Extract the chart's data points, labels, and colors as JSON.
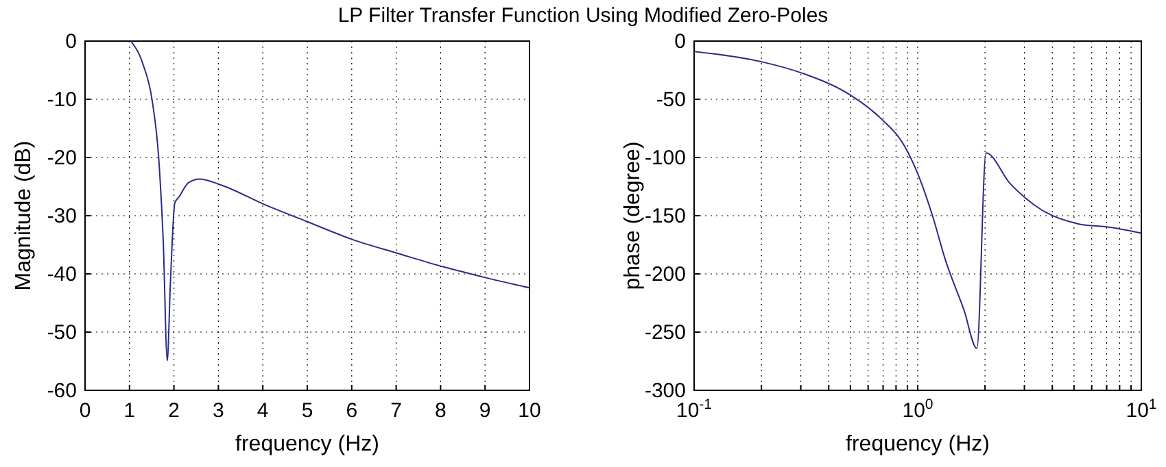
{
  "chart_data": [
    {
      "type": "line",
      "title": "LP Filter Transfer Function Using Modified Zero-Poles",
      "xlabel": "frequency (Hz)",
      "ylabel": "Magnitude (dB)",
      "xlim": [
        0,
        10
      ],
      "ylim": [
        -60,
        0
      ],
      "xticks": [
        0,
        1,
        2,
        3,
        4,
        5,
        6,
        7,
        8,
        9,
        10
      ],
      "yticks": [
        -60,
        -50,
        -40,
        -30,
        -20,
        -10,
        0
      ],
      "grid": true,
      "series": [
        {
          "color": "#2b2b8c",
          "x": [
            1.03,
            1.3,
            1.51,
            1.66,
            1.76,
            1.85,
            1.92,
            2.02,
            2.12,
            2.33,
            2.58,
            3.05,
            4.07,
            4.99,
            6.02,
            7.05,
            8.07,
            8.99,
            10
          ],
          "values": [
            0,
            -3.9,
            -10.2,
            -20.4,
            -34.5,
            -54.9,
            -41.6,
            -27.8,
            -26.7,
            -24.3,
            -23.7,
            -24.7,
            -28.2,
            -31,
            -34.1,
            -36.5,
            -38.8,
            -40.6,
            -42.4
          ]
        }
      ]
    },
    {
      "type": "line",
      "xlabel": "frequency (Hz)",
      "ylabel": "phase (degree)",
      "log": "x",
      "xlim": [
        0.1,
        10
      ],
      "ylim": [
        -300,
        0
      ],
      "xticks": [
        {
          "value": 0.1,
          "label": "10$^{-1}$"
        },
        {
          "value": 0.2,
          "label": null
        },
        {
          "value": 0.3,
          "label": null
        },
        {
          "value": 0.4,
          "label": null
        },
        {
          "value": 0.5,
          "label": null
        },
        {
          "value": 0.6,
          "label": null
        },
        {
          "value": 0.7,
          "label": null
        },
        {
          "value": 0.8,
          "label": null
        },
        {
          "value": 0.9,
          "label": null
        },
        {
          "value": 1,
          "label": "10$^{0}$"
        },
        {
          "value": 2,
          "label": null
        },
        {
          "value": 3,
          "label": null
        },
        {
          "value": 4,
          "label": null
        },
        {
          "value": 5,
          "label": null
        },
        {
          "value": 6,
          "label": null
        },
        {
          "value": 7,
          "label": null
        },
        {
          "value": 8,
          "label": null
        },
        {
          "value": 9,
          "label": null
        },
        {
          "value": 10,
          "label": "10$^{1}$"
        }
      ],
      "yticks": [
        -300,
        -250,
        -200,
        -150,
        -100,
        -50,
        0
      ],
      "grid": true,
      "series": [
        {
          "color": "#2b2b8c",
          "x": [
            0.1,
            0.203,
            0.309,
            0.496,
            0.689,
            0.872,
            1.02,
            1.16,
            1.33,
            1.61,
            1.84,
            2.02,
            2.58,
            3.58,
            5.22,
            7.26,
            10
          ],
          "values": [
            -9,
            -18,
            -28,
            -46,
            -67,
            -90,
            -118,
            -149,
            -188,
            -231,
            -264,
            -96,
            -122,
            -145,
            -157,
            -160,
            -165
          ]
        }
      ]
    }
  ]
}
